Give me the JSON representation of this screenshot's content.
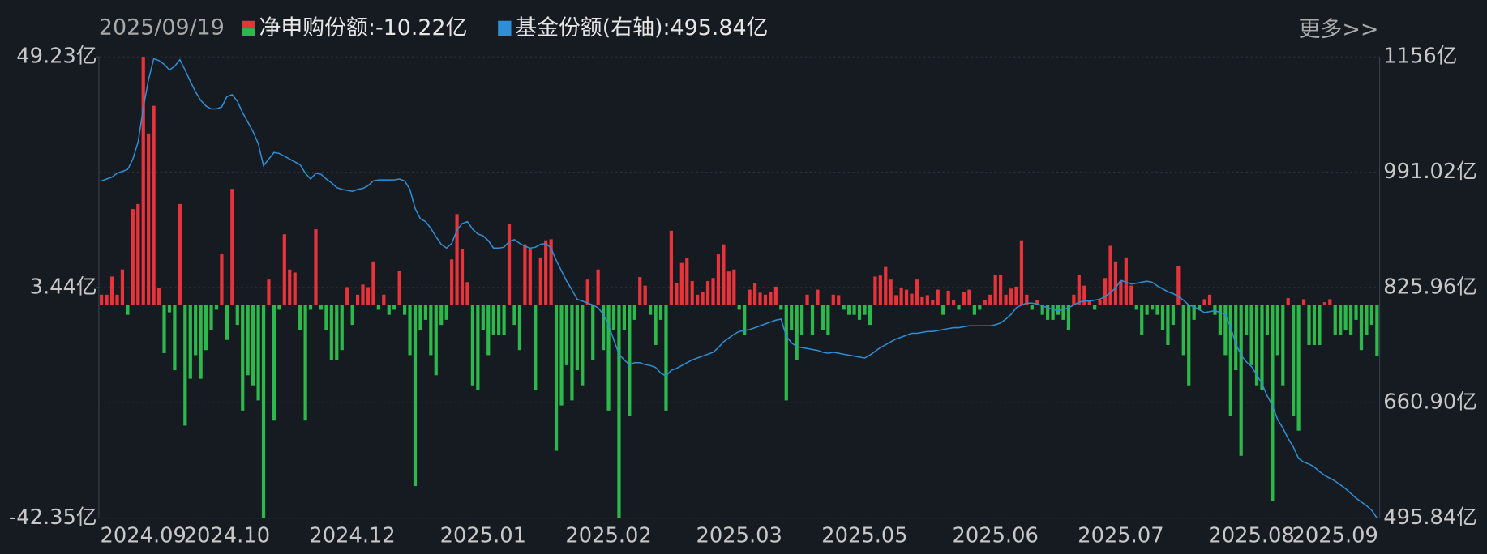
{
  "chart_data": {
    "type": "bar",
    "date": "2025/09/19",
    "more": "更多>>",
    "categories": [
      null,
      null,
      null,
      null,
      null,
      null,
      null,
      null,
      "2024.09",
      null,
      null,
      null,
      null,
      null,
      null,
      null,
      null,
      null,
      null,
      null,
      null,
      null,
      null,
      null,
      "2024.10",
      null,
      null,
      null,
      null,
      null,
      null,
      null,
      null,
      null,
      null,
      null,
      null,
      null,
      null,
      null,
      null,
      null,
      null,
      null,
      null,
      null,
      null,
      null,
      "2024.12",
      null,
      null,
      null,
      null,
      null,
      null,
      null,
      null,
      null,
      null,
      null,
      null,
      null,
      null,
      null,
      null,
      null,
      null,
      null,
      null,
      null,
      null,
      null,
      null,
      "2025.01",
      null,
      null,
      null,
      null,
      null,
      null,
      null,
      null,
      null,
      null,
      null,
      null,
      null,
      null,
      null,
      null,
      null,
      null,
      null,
      null,
      null,
      null,
      null,
      "2025.02",
      null,
      null,
      null,
      null,
      null,
      null,
      null,
      null,
      null,
      null,
      null,
      null,
      null,
      null,
      null,
      null,
      null,
      null,
      null,
      null,
      null,
      null,
      null,
      null,
      "2025.03",
      null,
      null,
      null,
      null,
      null,
      null,
      null,
      null,
      null,
      null,
      null,
      null,
      null,
      null,
      null,
      null,
      null,
      null,
      null,
      null,
      null,
      null,
      null,
      "2025.05",
      null,
      null,
      null,
      null,
      null,
      null,
      null,
      null,
      null,
      null,
      null,
      null,
      null,
      null,
      null,
      null,
      null,
      null,
      null,
      null,
      null,
      null,
      null,
      null,
      "2025.06",
      null,
      null,
      null,
      null,
      null,
      null,
      null,
      null,
      null,
      null,
      null,
      null,
      null,
      null,
      null,
      null,
      null,
      null,
      null,
      null,
      null,
      null,
      null,
      "2025.07",
      null,
      null,
      null,
      null,
      null,
      null,
      null,
      null,
      null,
      null,
      null,
      null,
      null,
      null,
      null,
      null,
      null,
      null,
      null,
      null,
      null,
      null,
      null,
      null,
      "2025.08",
      null,
      null,
      null,
      null,
      null,
      null,
      null,
      null,
      null,
      null,
      null,
      null,
      null,
      null,
      null,
      "2025.09",
      null,
      null,
      null,
      null,
      null,
      null,
      null,
      null
    ],
    "series": [
      {
        "name": "净申购份额",
        "legend_value": ":-10.22亿",
        "color_up": "#e8333a",
        "color_down": "#2db84b",
        "values": [
          2,
          2,
          5.6,
          2,
          7,
          -2,
          19,
          20,
          49.23,
          34,
          39.5,
          3.4,
          -9.6,
          -1.5,
          -13,
          20,
          -24,
          -14.7,
          -10,
          -14.7,
          -9,
          -5,
          -1,
          10,
          -7,
          23,
          -4,
          -21,
          -14,
          -16,
          -19,
          -42.35,
          5,
          -23,
          -1,
          14,
          7,
          6.4,
          -5,
          -23,
          -1,
          15,
          -1,
          -5,
          -11,
          -11,
          -9,
          3.5,
          -4,
          2,
          4,
          3.5,
          8.6,
          -1,
          2,
          -2,
          -1,
          6.8,
          -2,
          -10,
          -36,
          -5,
          -3,
          -10,
          -14,
          -4,
          -3,
          9,
          18,
          11,
          4.5,
          -16,
          -17,
          -5,
          -10,
          -6,
          -6,
          -6,
          16,
          -4,
          -9,
          12,
          11,
          -17,
          9.4,
          12.8,
          13,
          -29,
          -20,
          -12,
          -19,
          -13,
          -16,
          5,
          -11,
          7,
          -9,
          -21,
          -5,
          -42.35,
          -5,
          -22,
          -3,
          5.5,
          3.8,
          -2,
          -8,
          -3,
          -21,
          14.7,
          4.3,
          8.3,
          9.2,
          4.7,
          2,
          2.5,
          4.7,
          5.3,
          10,
          12,
          6.6,
          7,
          -1,
          -6,
          3,
          4.3,
          2.4,
          2,
          2.6,
          3.6,
          -1,
          -19,
          -5,
          -11,
          -6,
          2,
          -6,
          3,
          -5,
          -6,
          2,
          1.9,
          -1,
          -2,
          -2,
          -3,
          -2,
          -4,
          5.6,
          5.8,
          7.5,
          5,
          1.9,
          3.4,
          3,
          2.2,
          5,
          1.5,
          1.9,
          1,
          3,
          -2,
          2.8,
          1,
          -1,
          2.6,
          3,
          -2,
          -1,
          1,
          2,
          6,
          6,
          2,
          3.2,
          3.6,
          12.8,
          2,
          -1,
          1,
          -2,
          -3,
          -3,
          -2,
          -3,
          -5,
          2,
          6,
          3.8,
          1,
          -1,
          1,
          5.3,
          11.7,
          8.6,
          4.7,
          9.4,
          3.8,
          -1,
          -6,
          -2,
          -1,
          -2,
          -5,
          -8,
          -4,
          7.7,
          -10,
          -16,
          -3,
          -1,
          1.1,
          2,
          -2,
          -6,
          -10,
          -22,
          -13,
          -30,
          -6,
          -12,
          -16,
          -17,
          -6,
          -39,
          -10,
          -16,
          1.3,
          -22,
          -25,
          1.1,
          -8,
          -8,
          -8,
          0.5,
          1.1,
          -6,
          -6,
          -5,
          -6,
          -3,
          -9,
          -6,
          -4,
          -10.22
        ]
      },
      {
        "name": "基金份额(右轴)",
        "legend_value": ":495.84亿",
        "color": "#2e8fd6",
        "axis": "y2",
        "values": [
          978.4,
          981.1,
          983.8,
          989.3,
          992,
          994.7,
          1009.6,
          1034,
          1082.8,
          1123.5,
          1153.3,
          1150.6,
          1145.2,
          1137,
          1142.4,
          1151.9,
          1137,
          1120.8,
          1105.8,
          1093.6,
          1085.5,
          1081.4,
          1081.4,
          1084.2,
          1099.1,
          1101.8,
          1092.3,
          1076,
          1062.5,
          1048.9,
          1031.3,
          1000.1,
          1009.6,
          1019.1,
          1017.7,
          1013.7,
          1009.6,
          1005.5,
          1001.5,
          989.3,
          981.1,
          989.3,
          987.9,
          981.1,
          975.7,
          968.9,
          966.2,
          964.9,
          963.5,
          966.2,
          967.6,
          971.6,
          978.4,
          979.8,
          979.8,
          979.8,
          979.8,
          981.1,
          978.4,
          966.2,
          939.1,
          924.2,
          920.1,
          910.6,
          898.4,
          887.6,
          882.2,
          888.9,
          907.9,
          917.4,
          920.1,
          909.3,
          902.5,
          899.8,
          893,
          882.2,
          882.2,
          883.5,
          891.7,
          894.4,
          888.9,
          884.9,
          882.2,
          883.5,
          887.6,
          888.9,
          882.2,
          864.5,
          849.6,
          834.8,
          822.5,
          809,
          806.3,
          803.5,
          800.8,
          796.8,
          787.3,
          772.4,
          750.7,
          730.3,
          722.2,
          715.4,
          718.2,
          718.2,
          715.4,
          714.1,
          711.4,
          703.2,
          699.2,
          707.3,
          710,
          714.1,
          718.2,
          722.2,
          724.9,
          727.6,
          730.3,
          733.1,
          739.8,
          748,
          753.4,
          758.8,
          762.9,
          764.3,
          765.6,
          768.3,
          771,
          773.7,
          776.4,
          779.1,
          780.5,
          756.1,
          746.6,
          741.2,
          739.8,
          738.5,
          737.1,
          735.8,
          733.1,
          731.7,
          733.1,
          731.7,
          730.3,
          729,
          727.6,
          726.2,
          724.9,
          729,
          734.4,
          739.8,
          743.9,
          748,
          752,
          754.7,
          757.5,
          760.2,
          760.2,
          761.5,
          762.9,
          762.9,
          764.3,
          765.6,
          767,
          768.3,
          768.3,
          769.7,
          771,
          771,
          771,
          771,
          771,
          772.4,
          775.1,
          780.5,
          787.3,
          796.8,
          800.8,
          803.5,
          803.5,
          802.2,
          799.5,
          796.8,
          794,
          792.7,
          794,
          796.8,
          800.8,
          804.9,
          806.3,
          806.3,
          807.6,
          809,
          813,
          818.5,
          825.2,
          836.1,
          833.4,
          830.7,
          832,
          833.4,
          834.8,
          833.4,
          828,
          823.9,
          819.8,
          817.1,
          813,
          807.6,
          800.8,
          798.1,
          794,
          790,
          791.3,
          792.7,
          790,
          787.3,
          768.3,
          745.3,
          729,
          719.5,
          712.7,
          700.5,
          688.3,
          670.7,
          657.1,
          636.8,
          624.6,
          609.7,
          597.5,
          581.2,
          575.8,
          573.1,
          569.1,
          562.2,
          556.8,
          552.8,
          548.7,
          543.3,
          537.8,
          531.1,
          524.3,
          518.9,
          513.5,
          506.8,
          495.84
        ]
      }
    ],
    "ylim": [
      -42.35,
      49.23
    ],
    "yticks": [
      {
        "value": 49.23,
        "label": "49.23亿"
      },
      {
        "value": 3.44,
        "label": "3.44亿"
      },
      {
        "value": -42.35,
        "label": "-42.35亿"
      }
    ],
    "y2lim": [
      495.84,
      1156
    ],
    "y2ticks": [
      {
        "value": 1156,
        "label": "1156亿"
      },
      {
        "value": 991.02,
        "label": "991.02亿"
      },
      {
        "value": 825.96,
        "label": "825.96亿"
      },
      {
        "value": 660.9,
        "label": "660.90亿"
      },
      {
        "value": 495.84,
        "label": "495.84亿"
      }
    ],
    "grid": true
  }
}
